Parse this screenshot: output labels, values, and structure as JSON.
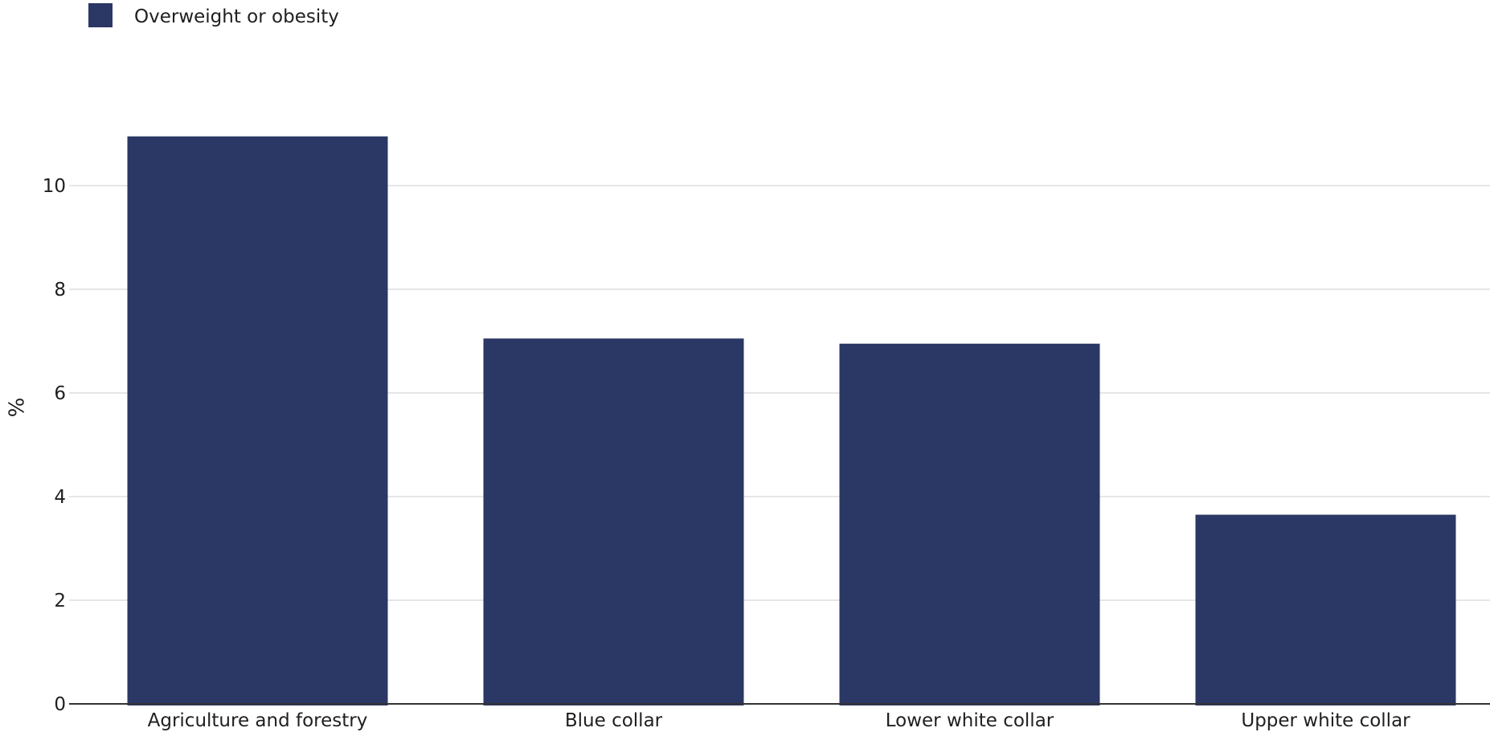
{
  "chart_data": {
    "type": "bar",
    "categories": [
      "Agriculture and forestry",
      "Blue collar",
      "Lower white collar",
      "Upper white collar"
    ],
    "series": [
      {
        "name": "Overweight or obesity",
        "values": [
          10.95,
          7.05,
          6.95,
          3.65
        ],
        "color": "#2b3764"
      }
    ],
    "title": "",
    "xlabel": "",
    "ylabel": "%",
    "ylim": [
      0,
      12
    ],
    "yticks": [
      0,
      2,
      4,
      6,
      8,
      10
    ],
    "grid": true,
    "legend_position": "top-left"
  }
}
